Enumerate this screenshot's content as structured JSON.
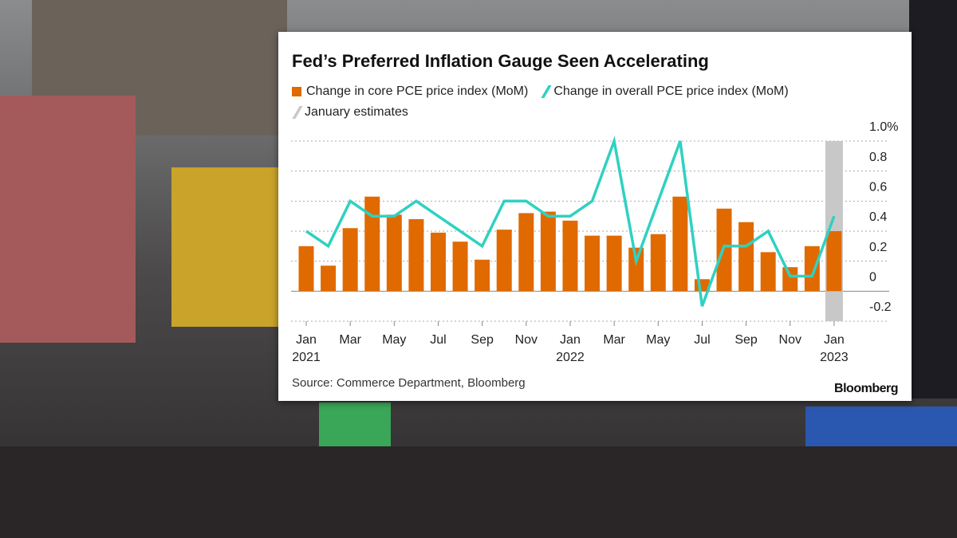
{
  "chart_data": {
    "type": "bar",
    "title": "Fed’s Preferred Inflation Gauge Seen Accelerating",
    "categories": [
      "Jan\n2021",
      null,
      "Mar",
      null,
      "May",
      null,
      "Jul",
      null,
      "Sep",
      null,
      "Nov",
      null,
      "Jan\n2022",
      null,
      "Mar",
      null,
      "May",
      null,
      "Jul",
      null,
      "Sep",
      null,
      "Nov",
      null,
      "Jan\n2023"
    ],
    "series": [
      {
        "name": "Change in core PCE price index (MoM)",
        "type": "bar",
        "color": "#e06a00",
        "values": [
          0.3,
          0.17,
          0.42,
          0.63,
          0.51,
          0.48,
          0.39,
          0.33,
          0.21,
          0.41,
          0.52,
          0.53,
          0.47,
          0.37,
          0.37,
          0.29,
          0.38,
          0.63,
          0.08,
          0.55,
          0.46,
          0.26,
          0.16,
          0.3,
          0.4
        ]
      },
      {
        "name": "Change in overall PCE price index (MoM)",
        "type": "line",
        "color": "#2fd1c2",
        "values": [
          0.4,
          0.3,
          0.6,
          0.5,
          0.5,
          0.6,
          0.5,
          0.4,
          0.3,
          0.6,
          0.6,
          0.5,
          0.5,
          0.6,
          1.0,
          0.2,
          0.6,
          1.0,
          -0.1,
          0.3,
          0.3,
          0.4,
          0.1,
          0.1,
          0.5
        ]
      },
      {
        "name": "January estimates",
        "type": "band",
        "color": "#c8c8c8",
        "values": [
          null,
          null,
          null,
          null,
          null,
          null,
          null,
          null,
          null,
          null,
          null,
          null,
          null,
          null,
          null,
          null,
          null,
          null,
          null,
          null,
          null,
          null,
          null,
          null,
          [
            -0.2,
            1.0
          ]
        ]
      }
    ],
    "ylim": [
      -0.2,
      1.0
    ],
    "yticks": [
      {
        "value": 1.0,
        "label": "1.0%"
      },
      0.8,
      0.6,
      0.4,
      0.2,
      0,
      -0.2
    ],
    "grid": true,
    "source": "Source: Commerce Department, Bloomberg",
    "brand": "Bloomberg"
  }
}
